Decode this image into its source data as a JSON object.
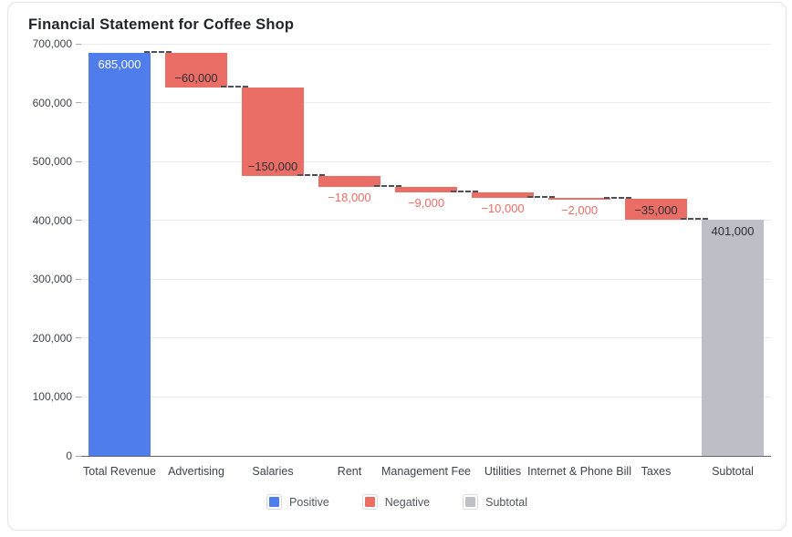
{
  "card": {
    "title": "Financial Statement for Coffee Shop"
  },
  "chart_data": {
    "type": "bar",
    "subtype": "waterfall",
    "title": "Financial Statement for Coffee Shop",
    "categories": [
      "Total Revenue",
      "Advertising",
      "Salaries",
      "Rent",
      "Management Fee",
      "Utilities",
      "Internet & Phone Bill",
      "Taxes",
      "Subtotal"
    ],
    "values": [
      685000,
      -60000,
      -150000,
      -18000,
      -9000,
      -10000,
      -2000,
      -35000,
      401000
    ],
    "kinds": [
      "positive",
      "negative",
      "negative",
      "negative",
      "negative",
      "negative",
      "negative",
      "negative",
      "subtotal"
    ],
    "bar_labels": [
      "685,000",
      "−60,000",
      "−150,000",
      "−18,000",
      "−9,000",
      "−10,000",
      "−2,000",
      "−35,000",
      "401,000"
    ],
    "running_totals": [
      685000,
      625000,
      475000,
      457000,
      448000,
      438000,
      436000,
      401000,
      401000
    ],
    "xlabel": "",
    "ylabel": "",
    "ylim": [
      0,
      700000
    ],
    "ytick_step": 100000,
    "ytick_labels": [
      "0",
      "100,000",
      "200,000",
      "300,000",
      "400,000",
      "500,000",
      "600,000",
      "700,000"
    ],
    "grid": true,
    "legend": {
      "position": "bottom",
      "items": [
        {
          "label": "Positive",
          "kind": "positive",
          "color": "#4f7dec"
        },
        {
          "label": "Negative",
          "kind": "negative",
          "color": "#eb6e66"
        },
        {
          "label": "Subtotal",
          "kind": "subtotal",
          "color": "#bcbfc5"
        }
      ]
    },
    "colors": {
      "positive": "#4f7dec",
      "negative": "#eb6e66",
      "subtotal": "#bcbfc5",
      "connector": "#4c5058",
      "grid": "#e8eaed",
      "axis_line": "#63666e",
      "axis_text": "#40454e",
      "label_dark": "#2c3036",
      "label_on_positive": "#ffffff",
      "label_below_bar": "#eb6e66"
    }
  }
}
